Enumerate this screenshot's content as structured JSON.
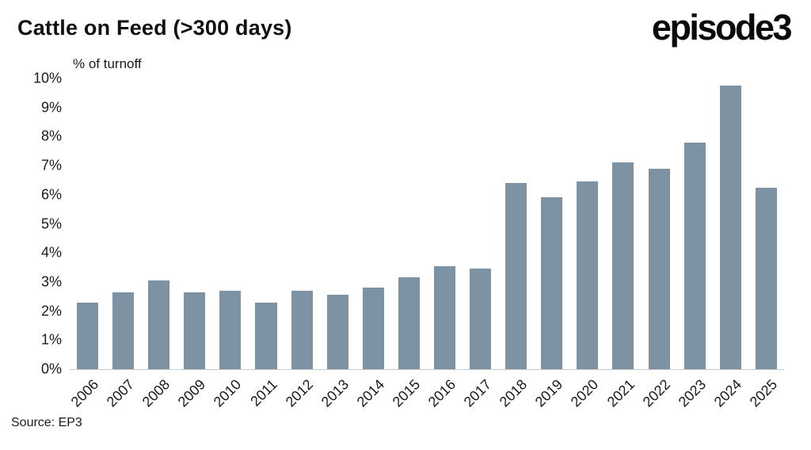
{
  "header": {
    "title": "Cattle on Feed (>300 days)",
    "logo": "episode3"
  },
  "chart_data": {
    "type": "bar",
    "title": "Cattle on Feed (>300 days)",
    "ylabel": "% of turnoff",
    "xlabel": "",
    "categories": [
      "2006",
      "2007",
      "2008",
      "2009",
      "2010",
      "2011",
      "2012",
      "2013",
      "2014",
      "2015",
      "2016",
      "2017",
      "2018",
      "2019",
      "2020",
      "2021",
      "2022",
      "2023",
      "2024",
      "2025"
    ],
    "values": [
      2.3,
      2.65,
      3.05,
      2.65,
      2.7,
      2.3,
      2.7,
      2.55,
      2.8,
      3.15,
      3.55,
      3.45,
      6.4,
      5.9,
      6.45,
      7.1,
      6.9,
      7.8,
      9.75,
      6.25
    ],
    "ylim": [
      0,
      10
    ],
    "y_tick_step": 1,
    "y_tick_suffix": "%",
    "grid": false,
    "legend": false,
    "bar_color": "#7d93a3"
  },
  "footer": {
    "source": "Source: EP3"
  }
}
